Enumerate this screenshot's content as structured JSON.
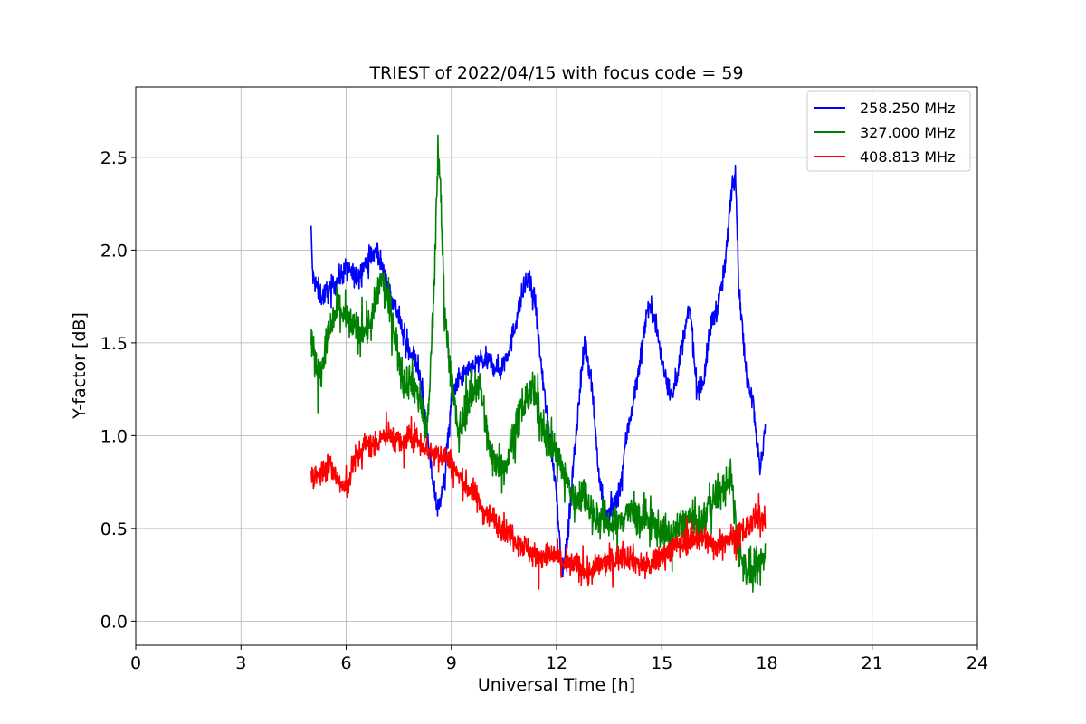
{
  "chart_data": {
    "type": "line",
    "title": "TRIEST of 2022/04/15 with focus code = 59",
    "xlabel": "Universal Time [h]",
    "ylabel": "Y-factor [dB]",
    "xlim": [
      0,
      24
    ],
    "ylim": [
      -0.13,
      2.88
    ],
    "xticks": [
      0,
      3,
      6,
      9,
      12,
      15,
      18,
      21,
      24
    ],
    "yticks": [
      0.0,
      0.5,
      1.0,
      1.5,
      2.0,
      2.5
    ],
    "ytick_labels": [
      "0.0",
      "0.5",
      "1.0",
      "1.5",
      "2.0",
      "2.5"
    ],
    "grid": true,
    "legend_position": "top-right",
    "series": [
      {
        "name": "258.250 MHz",
        "color": "#0000ff",
        "noise": 0.06,
        "x": [
          5.0,
          5.05,
          5.3,
          5.6,
          6.0,
          6.3,
          6.6,
          6.9,
          7.1,
          7.4,
          7.7,
          8.0,
          8.2,
          8.4,
          8.6,
          8.8,
          9.0,
          9.2,
          9.5,
          9.8,
          10.1,
          10.4,
          10.7,
          11.0,
          11.2,
          11.4,
          11.6,
          11.8,
          12.0,
          12.15,
          12.3,
          12.5,
          12.8,
          13.0,
          13.2,
          13.4,
          13.6,
          13.8,
          14.0,
          14.3,
          14.6,
          14.8,
          15.0,
          15.3,
          15.6,
          15.8,
          16.0,
          16.2,
          16.4,
          16.6,
          16.8,
          17.0,
          17.1,
          17.2,
          17.4,
          17.6,
          17.8,
          17.95
        ],
        "y": [
          2.1,
          1.85,
          1.75,
          1.8,
          1.9,
          1.85,
          1.95,
          2.0,
          1.85,
          1.7,
          1.5,
          1.4,
          1.2,
          0.85,
          0.6,
          0.75,
          1.2,
          1.3,
          1.35,
          1.4,
          1.4,
          1.35,
          1.5,
          1.75,
          1.85,
          1.7,
          1.3,
          1.0,
          0.7,
          0.25,
          0.4,
          0.9,
          1.5,
          1.3,
          0.8,
          0.55,
          0.6,
          0.7,
          1.0,
          1.3,
          1.7,
          1.65,
          1.4,
          1.2,
          1.5,
          1.7,
          1.25,
          1.3,
          1.6,
          1.7,
          1.9,
          2.35,
          2.45,
          1.8,
          1.35,
          1.2,
          0.8,
          1.05
        ]
      },
      {
        "name": "327.000 MHz",
        "color": "#008000",
        "noise": 0.1,
        "x": [
          5.0,
          5.1,
          5.3,
          5.5,
          5.8,
          6.1,
          6.4,
          6.7,
          7.0,
          7.3,
          7.6,
          7.9,
          8.1,
          8.3,
          8.5,
          8.62,
          8.7,
          8.8,
          9.0,
          9.2,
          9.5,
          9.8,
          10.1,
          10.4,
          10.58,
          10.7,
          11.0,
          11.3,
          11.6,
          11.9,
          12.2,
          12.5,
          12.8,
          13.1,
          13.4,
          13.7,
          14.0,
          14.3,
          14.6,
          14.9,
          15.2,
          15.5,
          15.8,
          16.1,
          16.4,
          16.7,
          17.0,
          17.2,
          17.4,
          17.6,
          17.8,
          17.95
        ],
        "y": [
          1.55,
          1.4,
          1.35,
          1.55,
          1.7,
          1.6,
          1.55,
          1.6,
          1.85,
          1.65,
          1.3,
          1.3,
          1.2,
          1.0,
          1.7,
          2.55,
          2.3,
          1.7,
          1.3,
          1.0,
          1.2,
          1.3,
          0.9,
          0.85,
          0.85,
          0.95,
          1.15,
          1.25,
          1.05,
          0.95,
          0.8,
          0.65,
          0.7,
          0.55,
          0.55,
          0.5,
          0.6,
          0.55,
          0.55,
          0.5,
          0.45,
          0.5,
          0.55,
          0.5,
          0.65,
          0.7,
          0.75,
          0.35,
          0.3,
          0.25,
          0.3,
          0.35
        ]
      },
      {
        "name": "408.813 MHz",
        "color": "#ff0000",
        "noise": 0.07,
        "x": [
          5.0,
          5.2,
          5.5,
          5.8,
          6.0,
          6.2,
          6.5,
          6.8,
          7.0,
          7.3,
          7.6,
          7.9,
          8.2,
          8.5,
          8.8,
          9.0,
          9.3,
          9.6,
          9.9,
          10.2,
          10.5,
          10.8,
          11.1,
          11.4,
          11.7,
          12.0,
          12.3,
          12.6,
          12.9,
          13.2,
          13.5,
          13.8,
          14.1,
          14.4,
          14.7,
          15.0,
          15.3,
          15.6,
          15.9,
          16.2,
          16.5,
          16.8,
          17.1,
          17.4,
          17.7,
          17.95
        ],
        "y": [
          0.8,
          0.78,
          0.85,
          0.75,
          0.7,
          0.85,
          0.95,
          0.95,
          1.0,
          1.0,
          0.95,
          1.0,
          0.95,
          0.9,
          0.9,
          0.85,
          0.75,
          0.7,
          0.6,
          0.55,
          0.5,
          0.45,
          0.4,
          0.35,
          0.35,
          0.35,
          0.3,
          0.3,
          0.25,
          0.3,
          0.32,
          0.35,
          0.35,
          0.3,
          0.3,
          0.35,
          0.4,
          0.42,
          0.45,
          0.45,
          0.4,
          0.45,
          0.45,
          0.5,
          0.55,
          0.55
        ]
      }
    ]
  }
}
